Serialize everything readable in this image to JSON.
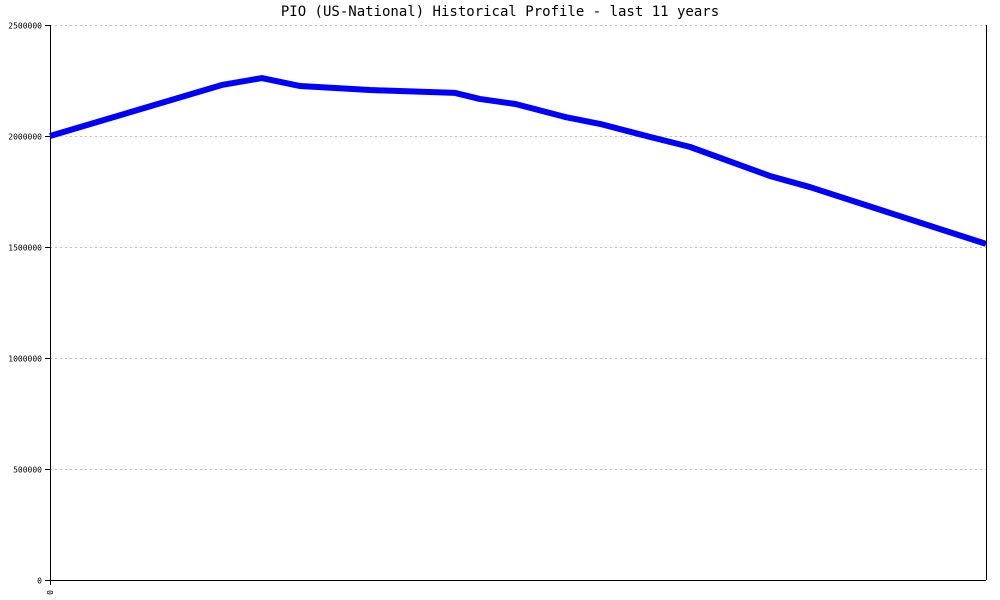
{
  "chart_data": {
    "type": "line",
    "title": "PIO (US-National) Historical Profile - last 11 years",
    "xlabel": "",
    "ylabel": "",
    "x_tick_labels": [
      "0"
    ],
    "xlim": [
      0,
      11
    ],
    "ylim": [
      0,
      2500000
    ],
    "y_ticks": [
      0,
      500000,
      1000000,
      1500000,
      2000000,
      2500000
    ],
    "y_tick_labels": [
      "0",
      "500000",
      "1000000",
      "1500000",
      "2000000",
      "2500000"
    ],
    "grid": "horizontal dotted",
    "legend": "none",
    "series": [
      {
        "color": "#0000ff",
        "x": [
          0,
          2.02,
          2.49,
          2.94,
          3.76,
          4.76,
          5.05,
          5.47,
          6.05,
          6.47,
          7.05,
          7.52,
          8.46,
          8.93,
          11
        ],
        "values": [
          2000000,
          2230000,
          2261000,
          2225000,
          2207000,
          2194000,
          2167000,
          2144000,
          2086000,
          2054000,
          1996000,
          1951000,
          1820000,
          1770000,
          1514000
        ]
      }
    ]
  }
}
